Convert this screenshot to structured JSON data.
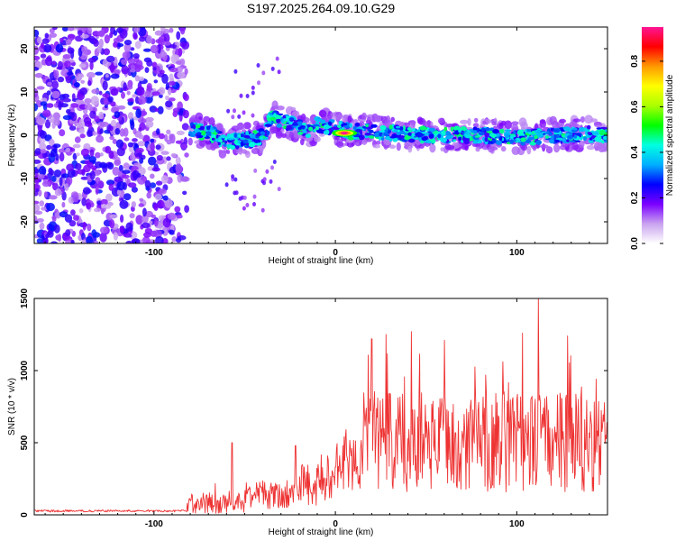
{
  "title": "S197.2025.264.09.10.G29",
  "chart_data": [
    {
      "type": "heatmap",
      "xlabel": "Height of straight line (km)",
      "ylabel": "Frequency (Hz)",
      "xlim": [
        -166,
        150
      ],
      "ylim": [
        -25,
        25
      ],
      "xticks": [
        -100,
        0,
        100
      ],
      "xtick_labels": [
        "-100",
        "0",
        "100"
      ],
      "yticks": [
        -20,
        -10,
        0,
        10,
        20
      ],
      "ytick_labels": [
        "-20",
        "-10",
        "0",
        "10",
        "20"
      ],
      "noise_region_x": [
        -166,
        -82
      ],
      "ridge": [
        {
          "x": -80,
          "y": 1.5
        },
        {
          "x": -70,
          "y": 0.5
        },
        {
          "x": -60,
          "y": -1.5
        },
        {
          "x": -50,
          "y": -1
        },
        {
          "x": -40,
          "y": -0.5
        },
        {
          "x": -35,
          "y": 4
        },
        {
          "x": -25,
          "y": 3
        },
        {
          "x": -15,
          "y": 1
        },
        {
          "x": -10,
          "y": 2.5
        },
        {
          "x": 0,
          "y": 1.5
        },
        {
          "x": 10,
          "y": 0.8
        },
        {
          "x": 20,
          "y": 1
        },
        {
          "x": 40,
          "y": 0.2
        },
        {
          "x": 60,
          "y": 0
        },
        {
          "x": 80,
          "y": 0
        },
        {
          "x": 100,
          "y": -0.5
        },
        {
          "x": 120,
          "y": 0
        },
        {
          "x": 140,
          "y": 0.3
        },
        {
          "x": 150,
          "y": 0
        }
      ],
      "peak": {
        "x": 5,
        "y": 0.5,
        "value": 0.95
      },
      "colorbar": {
        "label": "Normalized spectral amplitude",
        "range": [
          0,
          0.95
        ],
        "ticks": [
          0.0,
          0.2,
          0.4,
          0.6,
          0.8
        ],
        "tick_labels": [
          "0.0",
          "0.2",
          "0.4",
          "0.6",
          "0.8"
        ],
        "colors": [
          "#ffffff",
          "#c9a3ef",
          "#7b00ff",
          "#0000ff",
          "#00b0ff",
          "#00ffe0",
          "#00ff00",
          "#aaff00",
          "#ffff00",
          "#ff9900",
          "#ff0000",
          "#ff1493"
        ]
      }
    },
    {
      "type": "line",
      "xlabel": "Height of straight line (km)",
      "ylabel": "SNR (10 * v/v)",
      "xlim": [
        -166,
        150
      ],
      "ylim": [
        0,
        1500
      ],
      "xticks": [
        -100,
        0,
        100
      ],
      "xtick_labels": [
        "-100",
        "0",
        "100"
      ],
      "yticks": [
        0,
        500,
        1000,
        1500
      ],
      "ytick_labels": [
        "0",
        "500",
        "1000",
        "1500"
      ],
      "color": "#ee3333",
      "series": [
        {
          "name": "SNR",
          "segments": [
            {
              "from": -166,
              "to": -82,
              "baseline": 25,
              "amplitude": 15
            },
            {
              "from": -82,
              "to": -50,
              "baseline": 60,
              "amplitude": 140
            },
            {
              "from": -50,
              "to": -20,
              "baseline": 110,
              "amplitude": 200
            },
            {
              "from": -20,
              "to": 0,
              "baseline": 180,
              "amplitude": 330
            },
            {
              "from": 0,
              "to": 15,
              "baseline": 300,
              "amplitude": 380
            },
            {
              "from": 15,
              "to": 150,
              "baseline": 400,
              "amplitude": 700
            }
          ],
          "spikes": [
            {
              "x": -57,
              "y": 500
            },
            {
              "x": -22,
              "y": 480
            },
            {
              "x": 20,
              "y": 1220
            },
            {
              "x": 28,
              "y": 1250
            },
            {
              "x": 42,
              "y": 1270
            },
            {
              "x": 60,
              "y": 1210
            },
            {
              "x": 103,
              "y": 1260
            },
            {
              "x": 112,
              "y": 1500
            },
            {
              "x": 128,
              "y": 1240
            }
          ]
        }
      ]
    }
  ]
}
